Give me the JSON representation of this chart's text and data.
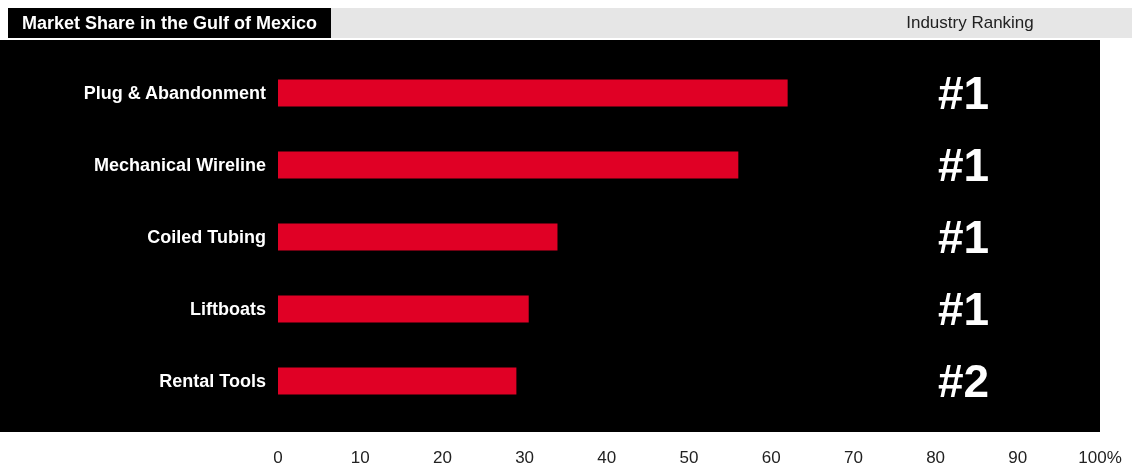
{
  "chart_data": {
    "type": "bar",
    "orientation": "horizontal",
    "title": "Market Share in the Gulf of Mexico",
    "y2label": "Industry Ranking",
    "categories": [
      "Plug & Abandonment",
      "Mechanical Wireline",
      "Coiled Tubing",
      "Liftboats",
      "Rental Tools"
    ],
    "y2_categories": [
      "#1",
      "#1",
      "#1",
      "#1",
      "#2"
    ],
    "values": [
      62,
      56,
      34,
      30.5,
      29
    ],
    "color": "#e00025",
    "xlim": [
      0,
      100
    ],
    "xticks": [
      0,
      10,
      20,
      30,
      40,
      50,
      60,
      70,
      80,
      90,
      {
        "value": 100,
        "label": "100%"
      }
    ],
    "grid": false
  }
}
